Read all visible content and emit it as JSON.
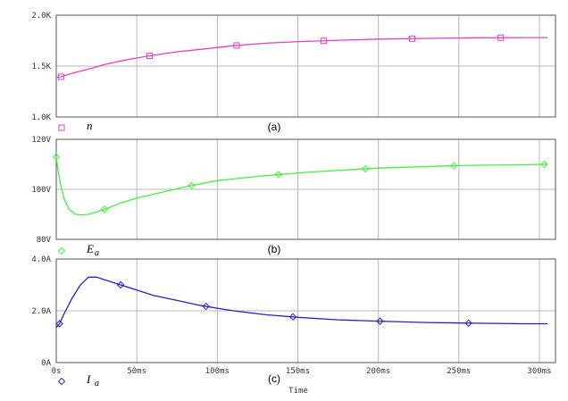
{
  "chart_data": [
    {
      "type": "line",
      "panel_label": "(a)",
      "legend": {
        "name": "n",
        "subscript": "",
        "color": "#e040c0",
        "marker": "square"
      },
      "ylim": [
        1000,
        2000
      ],
      "yticks": [
        {
          "v": 1000,
          "label": "1.0K"
        },
        {
          "v": 1500,
          "label": "1.5K"
        },
        {
          "v": 2000,
          "label": "2.0K"
        }
      ],
      "color": "#e040c0",
      "marker": "square",
      "series": [
        {
          "x": [
            0,
            3,
            10,
            20,
            30,
            40,
            50,
            60,
            75,
            90,
            110,
            130,
            150,
            170,
            200,
            230,
            260,
            290,
            305
          ],
          "y": [
            1390,
            1395,
            1430,
            1470,
            1515,
            1550,
            1580,
            1605,
            1640,
            1665,
            1700,
            1725,
            1740,
            1750,
            1765,
            1772,
            1778,
            1780,
            1780
          ]
        }
      ],
      "markers_x": [
        3,
        58,
        112,
        166,
        221,
        276
      ]
    },
    {
      "type": "line",
      "panel_label": "(b)",
      "legend": {
        "name": "E",
        "subscript": "a",
        "color": "#44ee44",
        "marker": "diamond"
      },
      "ylim": [
        80,
        120
      ],
      "yticks": [
        {
          "v": 80,
          "label": "80V"
        },
        {
          "v": 100,
          "label": "100V"
        },
        {
          "v": 120,
          "label": "120V"
        }
      ],
      "color": "#44ee44",
      "marker": "diamond",
      "series": [
        {
          "x": [
            0,
            1,
            3,
            5,
            8,
            12,
            16,
            20,
            25,
            30,
            40,
            50,
            60,
            80,
            100,
            130,
            160,
            200,
            250,
            305
          ],
          "y": [
            113,
            108,
            101,
            96,
            92,
            90,
            89.8,
            90,
            91,
            92,
            94.5,
            96.5,
            98,
            101,
            103.5,
            105.5,
            107,
            108.5,
            109.5,
            110
          ]
        }
      ],
      "markers_x": [
        0,
        30,
        84,
        138,
        192,
        247,
        303
      ]
    },
    {
      "type": "line",
      "panel_label": "(c)",
      "legend": {
        "name": "I",
        "subscript": "a",
        "color": "#3333cc",
        "marker": "diamond"
      },
      "ylim": [
        0,
        4
      ],
      "yticks": [
        {
          "v": 0,
          "label": "0A"
        },
        {
          "v": 2,
          "label": "2.0A"
        },
        {
          "v": 4,
          "label": "4.0A"
        }
      ],
      "color": "#2222cc",
      "marker": "diamond",
      "series": [
        {
          "x": [
            0,
            2,
            5,
            10,
            15,
            20,
            25,
            30,
            40,
            50,
            60,
            75,
            90,
            110,
            130,
            150,
            175,
            200,
            230,
            260,
            290,
            305
          ],
          "y": [
            1.35,
            1.5,
            1.9,
            2.5,
            3.0,
            3.3,
            3.3,
            3.2,
            3.0,
            2.8,
            2.6,
            2.4,
            2.2,
            2.0,
            1.85,
            1.75,
            1.65,
            1.6,
            1.55,
            1.52,
            1.5,
            1.5
          ]
        }
      ],
      "markers_x": [
        2,
        40,
        93,
        147,
        201,
        256
      ]
    }
  ],
  "x_axis": {
    "xlim": [
      0,
      310
    ],
    "ticks": [
      {
        "v": 0,
        "label": "0s"
      },
      {
        "v": 50,
        "label": "50ms"
      },
      {
        "v": 100,
        "label": "100ms"
      },
      {
        "v": 150,
        "label": "150ms"
      },
      {
        "v": 200,
        "label": "200ms"
      },
      {
        "v": 250,
        "label": "250ms"
      },
      {
        "v": 300,
        "label": "300ms"
      }
    ],
    "label": "Time"
  }
}
